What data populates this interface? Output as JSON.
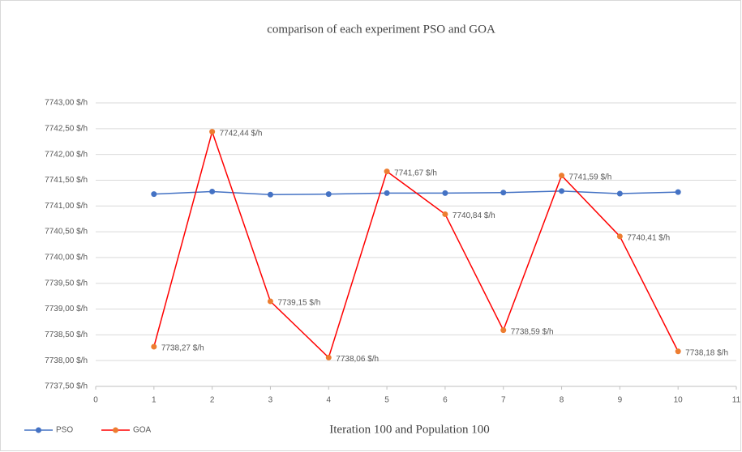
{
  "chart_data": {
    "type": "line",
    "title": "comparison of each experiment PSO and GOA",
    "x_label": "Iteration 100 and Population 100",
    "x": [
      1,
      2,
      3,
      4,
      5,
      6,
      7,
      8,
      9,
      10
    ],
    "series": [
      {
        "name": "PSO",
        "color": "#4472c4",
        "marker_color": "#4472c4",
        "values": [
          7741.23,
          7741.28,
          7741.22,
          7741.23,
          7741.25,
          7741.25,
          7741.26,
          7741.29,
          7741.24,
          7741.27
        ]
      },
      {
        "name": "GOA",
        "color": "#ff0000",
        "marker_color": "#ed7d31",
        "values": [
          7738.27,
          7742.44,
          7739.15,
          7738.06,
          7741.67,
          7740.84,
          7738.59,
          7741.59,
          7740.41,
          7738.18
        ],
        "value_labels": [
          "7738,27 $/h",
          "7742,44 $/h",
          "7739,15 $/h",
          "7738,06 $/h",
          "7741,67 $/h",
          "7740,84 $/h",
          "7738,59 $/h",
          "7741,59 $/h",
          "7740,41 $/h",
          "7738,18 $/h"
        ]
      }
    ],
    "xlim": [
      0,
      11
    ],
    "xticks": [
      0,
      1,
      2,
      3,
      4,
      5,
      6,
      7,
      8,
      9,
      10,
      11
    ],
    "ylim": [
      7737.5,
      7743
    ],
    "yticks": [
      {
        "value": 7737.5,
        "label": "7737,50 $/h"
      },
      {
        "value": 7738,
        "label": "7738,00 $/h"
      },
      {
        "value": 7738.5,
        "label": "7738,50 $/h"
      },
      {
        "value": 7739,
        "label": "7739,00 $/h"
      },
      {
        "value": 7739.5,
        "label": "7739,50 $/h"
      },
      {
        "value": 7740,
        "label": "7740,00 $/h"
      },
      {
        "value": 7740.5,
        "label": "7740,50 $/h"
      },
      {
        "value": 7741,
        "label": "7741,00 $/h"
      },
      {
        "value": 7741.5,
        "label": "7741,50 $/h"
      },
      {
        "value": 7742,
        "label": "7742,00 $/h"
      },
      {
        "value": 7742.5,
        "label": "7742,50 $/h"
      },
      {
        "value": 7743,
        "label": "7743,00 $/h"
      }
    ],
    "grid": true,
    "legend": "bottom-left"
  }
}
